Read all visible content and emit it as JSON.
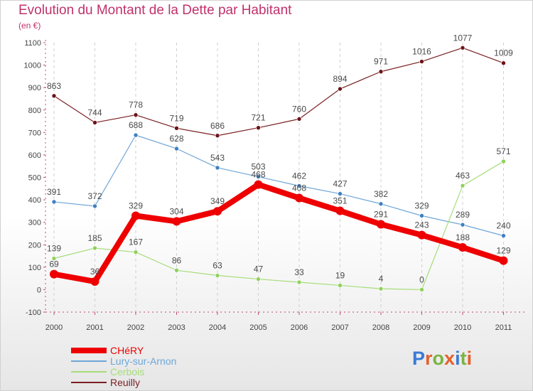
{
  "title": "Evolution du Montant de la Dette par Habitant",
  "subtitle": "(en €)",
  "brand": {
    "letters": [
      "P",
      "r",
      "o",
      "x",
      "i",
      "t",
      "i"
    ],
    "colors": [
      "#3a7bd5",
      "#e3612d",
      "#7cb342",
      "#e3612d",
      "#3a7bd5",
      "#7cb342",
      "#e3612d"
    ]
  },
  "chart_data": {
    "type": "line",
    "x": [
      "2000",
      "2001",
      "2002",
      "2003",
      "2004",
      "2005",
      "2006",
      "2007",
      "2008",
      "2009",
      "2010",
      "2011"
    ],
    "y_ticks": [
      "-100",
      "0",
      "100",
      "200",
      "300",
      "400",
      "500",
      "600",
      "700",
      "800",
      "900",
      "1000",
      "1100"
    ],
    "ylim": [
      -100,
      1100
    ],
    "grid": "vertical dashed",
    "legend_position": "bottom-left",
    "series": [
      {
        "name": "Reuilly",
        "color": "#7a1f22",
        "point_color": "#6b1418",
        "width": 1.2,
        "marker": 3,
        "values": [
          863,
          744,
          778,
          719,
          686,
          721,
          760,
          894,
          971,
          1016,
          1077,
          1009
        ]
      },
      {
        "name": "Lury-sur-Arnon",
        "color": "#6ea6d8",
        "point_color": "#3f7fc1",
        "width": 1.2,
        "marker": 3,
        "values": [
          391,
          372,
          688,
          628,
          543,
          503,
          462,
          427,
          382,
          329,
          289,
          240
        ]
      },
      {
        "name": "Cerbois",
        "color": "#a6dd7a",
        "point_color": "#8fd15a",
        "width": 1.2,
        "marker": 3,
        "values": [
          139,
          185,
          167,
          86,
          63,
          47,
          33,
          19,
          4,
          0,
          463,
          571
        ]
      },
      {
        "name": "CHéRY",
        "color": "#ee0000",
        "point_color": "#ee0000",
        "width": 8,
        "marker": 6,
        "values": [
          69,
          36,
          329,
          304,
          349,
          468,
          408,
          351,
          291,
          243,
          188,
          129
        ]
      }
    ],
    "legend": [
      {
        "name": "CHéRY",
        "color": "#ee0000",
        "thickness": 8
      },
      {
        "name": "Lury-sur-Arnon",
        "color": "#6ea6d8",
        "thickness": 2
      },
      {
        "name": "Cerbois",
        "color": "#a6dd7a",
        "thickness": 2
      },
      {
        "name": "Reuilly",
        "color": "#7a1f22",
        "thickness": 2
      }
    ]
  }
}
